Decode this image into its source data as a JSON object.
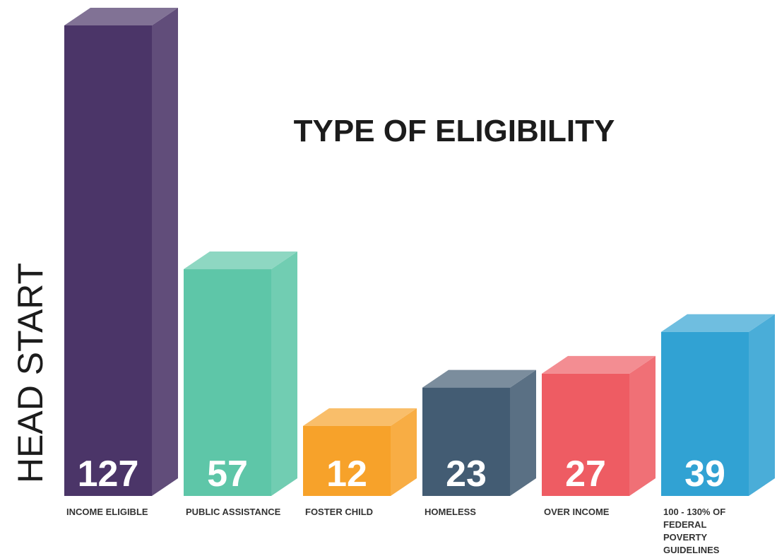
{
  "chart_data": {
    "type": "bar3d",
    "title": "TYPE OF ELIGIBILITY",
    "side_label": "HEAD START",
    "categories": [
      "INCOME ELIGIBLE",
      "PUBLIC ASSISTANCE",
      "FOSTER CHILD",
      "HOMELESS",
      "OVER INCOME",
      "100 - 130% OF FEDERAL POVERTY GUIDELINES"
    ],
    "values": [
      127,
      57,
      12,
      23,
      27,
      39
    ],
    "colors": [
      "#4b3568",
      "#5ec6a8",
      "#f7a22a",
      "#435c73",
      "#ee5c63",
      "#31a2d3"
    ]
  }
}
